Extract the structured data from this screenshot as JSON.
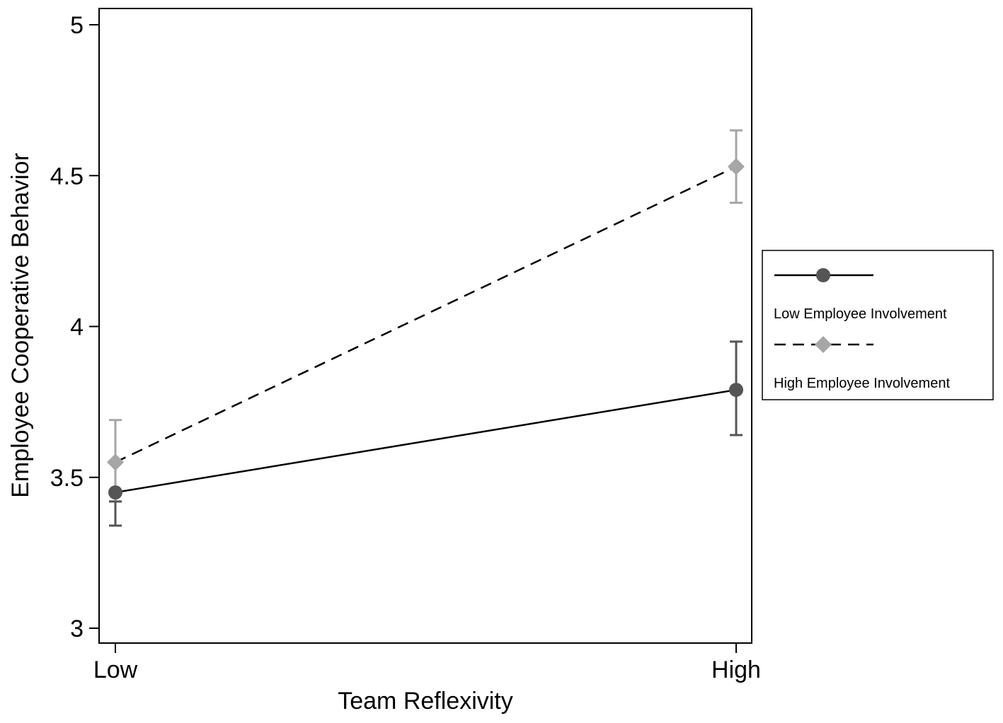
{
  "chart_data": {
    "type": "line",
    "title": "",
    "xlabel": "Team Reflexivity",
    "ylabel": "Employee Cooperative Behavior",
    "categories": [
      "Low",
      "High"
    ],
    "ylim": [
      3,
      5
    ],
    "yticks": [
      3,
      3.5,
      4,
      4.5,
      5
    ],
    "ytick_labels": [
      "3",
      "3.5",
      "4",
      "4.5",
      "5"
    ],
    "grid": false,
    "legend_position": "right",
    "series": [
      {
        "name": "Low Employee Involvement",
        "values": [
          3.45,
          3.79
        ],
        "ci_low": [
          3.34,
          3.64
        ],
        "ci_high": [
          3.42,
          3.95
        ],
        "line_style": "solid",
        "marker": "circle",
        "color": "#555555"
      },
      {
        "name": "High Employee Involvement",
        "values": [
          3.55,
          4.53
        ],
        "ci_low": [
          3.42,
          4.41
        ],
        "ci_high": [
          3.69,
          4.65
        ],
        "line_style": "dashed",
        "marker": "diamond",
        "color": "#a6a6a6"
      }
    ]
  }
}
